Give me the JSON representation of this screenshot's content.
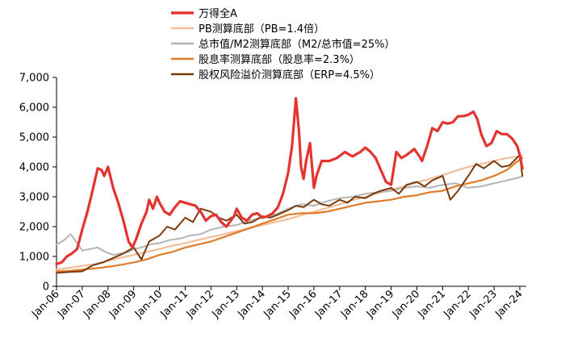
{
  "chart_data": {
    "type": "line",
    "title": "",
    "xlabel": "",
    "ylabel": "",
    "ylim": [
      0,
      7000
    ],
    "yticks": [
      0,
      1000,
      2000,
      3000,
      4000,
      5000,
      6000,
      7000
    ],
    "ytick_labels": [
      "0",
      "1,000",
      "2,000",
      "3,000",
      "4,000",
      "5,000",
      "6,000",
      "7,000"
    ],
    "xlim": [
      2006.0,
      2024.25
    ],
    "xticks": [
      2006,
      2007,
      2008,
      2009,
      2010,
      2011,
      2012,
      2013,
      2014,
      2015,
      2016,
      2017,
      2018,
      2019,
      2020,
      2021,
      2022,
      2023,
      2024
    ],
    "xtick_labels": [
      "Jan-06",
      "Jan-07",
      "Jan-08",
      "Jan-09",
      "Jan-10",
      "Jan-11",
      "Jan-12",
      "Jan-13",
      "Jan-14",
      "Jan-15",
      "Jan-16",
      "Jan-17",
      "Jan-18",
      "Jan-19",
      "Jan-20",
      "Jan-21",
      "Jan-22",
      "Jan-23",
      "Jan-24"
    ],
    "legend_position": "top-center",
    "series": [
      {
        "name": "万得全A",
        "color": "#e3342f",
        "width": 3.2,
        "x": [
          2006.0,
          2006.2,
          2006.4,
          2006.6,
          2006.8,
          2007.0,
          2007.2,
          2007.4,
          2007.6,
          2007.75,
          2007.85,
          2008.0,
          2008.2,
          2008.4,
          2008.6,
          2008.8,
          2008.95,
          2009.1,
          2009.3,
          2009.5,
          2009.6,
          2009.75,
          2009.9,
          2010.0,
          2010.2,
          2010.4,
          2010.6,
          2010.8,
          2011.0,
          2011.2,
          2011.4,
          2011.6,
          2011.8,
          2012.0,
          2012.2,
          2012.4,
          2012.6,
          2012.9,
          2013.0,
          2013.2,
          2013.4,
          2013.6,
          2013.8,
          2014.0,
          2014.2,
          2014.4,
          2014.6,
          2014.8,
          2015.0,
          2015.15,
          2015.3,
          2015.42,
          2015.5,
          2015.6,
          2015.7,
          2015.85,
          2016.0,
          2016.1,
          2016.3,
          2016.6,
          2016.9,
          2017.2,
          2017.5,
          2017.8,
          2018.0,
          2018.2,
          2018.4,
          2018.6,
          2018.8,
          2019.0,
          2019.2,
          2019.4,
          2019.6,
          2019.9,
          2020.1,
          2020.2,
          2020.4,
          2020.6,
          2020.8,
          2021.0,
          2021.2,
          2021.4,
          2021.6,
          2021.8,
          2022.0,
          2022.2,
          2022.35,
          2022.5,
          2022.7,
          2022.9,
          2023.1,
          2023.3,
          2023.5,
          2023.7,
          2023.9,
          2024.0,
          2024.1
        ],
        "y": [
          750,
          800,
          1000,
          1100,
          1250,
          1900,
          2500,
          3200,
          3950,
          3900,
          3700,
          4000,
          3300,
          2800,
          2200,
          1500,
          1300,
          1600,
          2100,
          2500,
          2900,
          2600,
          3000,
          2800,
          2500,
          2400,
          2650,
          2850,
          2800,
          2750,
          2700,
          2500,
          2200,
          2350,
          2400,
          2150,
          2000,
          2350,
          2600,
          2300,
          2200,
          2400,
          2450,
          2300,
          2350,
          2450,
          2650,
          3100,
          3800,
          4700,
          6300,
          5200,
          4000,
          3600,
          4200,
          4800,
          3300,
          3700,
          4200,
          4200,
          4300,
          4500,
          4350,
          4500,
          4650,
          4500,
          4300,
          3900,
          3500,
          3400,
          4500,
          4300,
          4400,
          4600,
          4350,
          4200,
          4700,
          5300,
          5200,
          5500,
          5450,
          5500,
          5700,
          5700,
          5750,
          5850,
          5600,
          5100,
          4700,
          4800,
          5200,
          5100,
          5100,
          4950,
          4700,
          4400,
          3950
        ]
      },
      {
        "name": "PB测算底部（PB=1.4倍）",
        "color": "#f4be9a",
        "width": 2.2,
        "x": [
          2006.0,
          2006.5,
          2007.0,
          2007.5,
          2008.0,
          2008.5,
          2009.0,
          2009.5,
          2010.0,
          2010.5,
          2011.0,
          2011.5,
          2012.0,
          2012.5,
          2013.0,
          2013.5,
          2014.0,
          2014.5,
          2015.0,
          2015.5,
          2016.0,
          2016.5,
          2017.0,
          2017.5,
          2018.0,
          2018.5,
          2019.0,
          2019.5,
          2020.0,
          2020.5,
          2021.0,
          2021.5,
          2022.0,
          2022.5,
          2023.0,
          2023.5,
          2024.0,
          2024.1
        ],
        "y": [
          560,
          620,
          680,
          750,
          850,
          960,
          1050,
          1150,
          1250,
          1360,
          1450,
          1550,
          1650,
          1750,
          1850,
          1950,
          2050,
          2150,
          2250,
          2380,
          2500,
          2620,
          2750,
          2880,
          3000,
          3120,
          3250,
          3350,
          3480,
          3600,
          3730,
          3870,
          4000,
          4100,
          4200,
          4300,
          4350,
          4380
        ]
      },
      {
        "name": "总市值/M2测算底部（M2/总市值=25%）",
        "color": "#b4b4b4",
        "width": 2.0,
        "x": [
          2006.0,
          2006.3,
          2006.55,
          2006.8,
          2007.0,
          2007.3,
          2007.6,
          2007.9,
          2008.2,
          2008.5,
          2008.8,
          2009.0,
          2009.3,
          2009.6,
          2010.0,
          2010.4,
          2010.8,
          2011.2,
          2011.6,
          2012.0,
          2012.5,
          2013.0,
          2013.5,
          2014.0,
          2014.5,
          2015.0,
          2015.5,
          2016.0,
          2016.5,
          2017.0,
          2017.5,
          2018.0,
          2018.5,
          2019.0,
          2019.5,
          2020.0,
          2020.5,
          2021.0,
          2021.5,
          2022.0,
          2022.5,
          2023.0,
          2023.5,
          2024.0,
          2024.1
        ],
        "y": [
          1400,
          1550,
          1750,
          1450,
          1200,
          1250,
          1300,
          1150,
          1050,
          1100,
          1150,
          1250,
          1300,
          1400,
          1450,
          1550,
          1600,
          1700,
          1750,
          1900,
          2000,
          2050,
          2200,
          2300,
          2400,
          2600,
          2750,
          2700,
          2850,
          2950,
          3000,
          3100,
          3150,
          3200,
          3300,
          3350,
          3300,
          3400,
          3450,
          3300,
          3350,
          3450,
          3550,
          3650,
          3700
        ]
      },
      {
        "name": "股息率测算底部（股息率=2.3%）",
        "color": "#e07b2a",
        "width": 2.2,
        "x": [
          2006.0,
          2006.5,
          2007.0,
          2007.5,
          2008.0,
          2008.5,
          2009.0,
          2009.5,
          2010.0,
          2010.5,
          2011.0,
          2011.5,
          2012.0,
          2012.5,
          2013.0,
          2013.5,
          2014.0,
          2014.5,
          2015.0,
          2015.5,
          2016.0,
          2016.5,
          2017.0,
          2017.5,
          2018.0,
          2018.5,
          2019.0,
          2019.5,
          2020.0,
          2020.5,
          2021.0,
          2021.5,
          2022.0,
          2022.5,
          2023.0,
          2023.5,
          2024.0,
          2024.1
        ],
        "y": [
          500,
          520,
          560,
          600,
          650,
          720,
          800,
          900,
          1050,
          1150,
          1300,
          1400,
          1500,
          1650,
          1800,
          1950,
          2100,
          2250,
          2400,
          2450,
          2450,
          2500,
          2600,
          2700,
          2800,
          2850,
          2900,
          3000,
          3050,
          3150,
          3200,
          3350,
          3450,
          3550,
          3700,
          3900,
          4250,
          4300
        ]
      },
      {
        "name": "股权风险溢价测算底部（ERP=4.5%）",
        "color": "#7a3a0e",
        "width": 2.0,
        "x": [
          2006.0,
          2006.5,
          2007.0,
          2007.4,
          2007.8,
          2008.2,
          2008.6,
          2009.0,
          2009.3,
          2009.6,
          2010.0,
          2010.3,
          2010.6,
          2011.0,
          2011.3,
          2011.6,
          2012.0,
          2012.3,
          2012.6,
          2013.0,
          2013.3,
          2013.6,
          2014.0,
          2014.3,
          2014.6,
          2015.0,
          2015.3,
          2015.6,
          2016.0,
          2016.3,
          2016.6,
          2017.0,
          2017.3,
          2017.6,
          2018.0,
          2018.3,
          2018.6,
          2019.0,
          2019.3,
          2019.6,
          2020.0,
          2020.3,
          2020.6,
          2021.0,
          2021.3,
          2021.6,
          2022.0,
          2022.3,
          2022.6,
          2023.0,
          2023.3,
          2023.6,
          2024.0,
          2024.1
        ],
        "y": [
          450,
          480,
          500,
          700,
          800,
          950,
          1100,
          1300,
          900,
          1500,
          1700,
          2000,
          1900,
          2300,
          2150,
          2600,
          2500,
          2300,
          2200,
          2400,
          2100,
          2150,
          2350,
          2300,
          2400,
          2550,
          2700,
          2650,
          2900,
          2750,
          2700,
          2900,
          2800,
          3000,
          2950,
          3100,
          3200,
          3300,
          3100,
          3400,
          3500,
          3350,
          3550,
          3700,
          2900,
          3200,
          3700,
          4100,
          3950,
          4200,
          4000,
          4050,
          4400,
          3700
        ]
      }
    ]
  }
}
